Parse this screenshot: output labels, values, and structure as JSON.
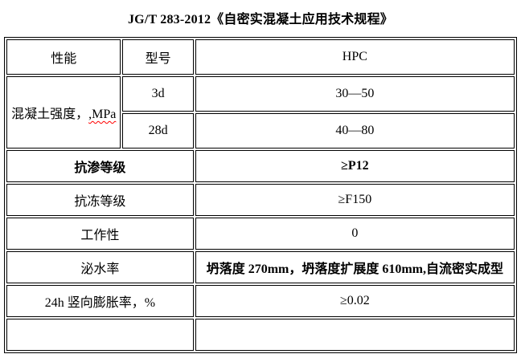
{
  "document": {
    "title": "JG/T 283-2012《自密实混凝土应用技术规程》"
  },
  "table": {
    "header": {
      "performance": "性能",
      "model": "型号",
      "type": "HPC"
    },
    "strength": {
      "label_main": "混凝土强度，",
      "label_spellchecked": ",MPa",
      "rows": [
        {
          "age": "3d",
          "value": "30—50"
        },
        {
          "age": "28d",
          "value": "40—80"
        }
      ]
    },
    "rows": [
      {
        "label": "抗渗等级",
        "value": "≥P12"
      },
      {
        "label": "抗冻等级",
        "value": "≥F150"
      },
      {
        "label": "工作性",
        "value": "0"
      },
      {
        "label": "泌水率",
        "value": "坍落度 270mm，坍落度扩展度 610mm,自流密实成型"
      },
      {
        "label": "24h 竖向膨胀率，%",
        "value": "≥0.02"
      },
      {
        "label": "",
        "value": ""
      }
    ],
    "colors": {
      "border": "#000000",
      "text": "#000000",
      "spellcheck_underline": "#ff0000",
      "background": "#ffffff"
    }
  }
}
